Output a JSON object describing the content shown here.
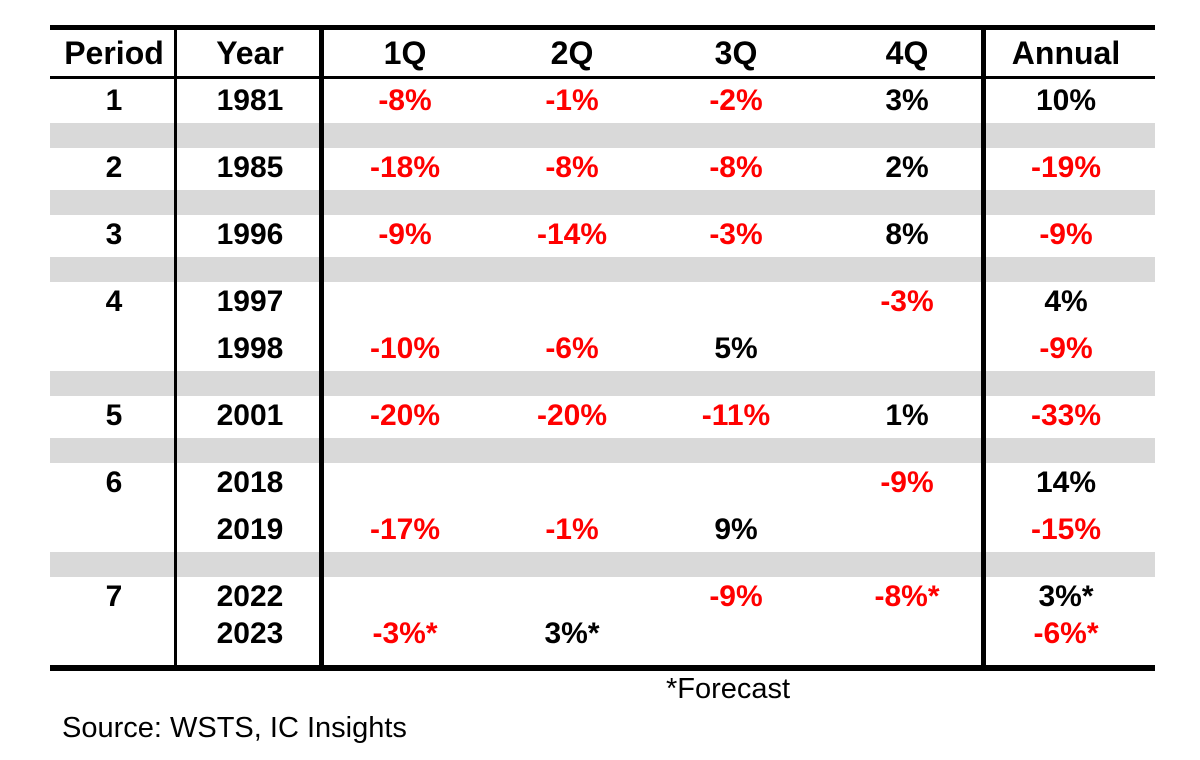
{
  "chart_data": {
    "type": "table",
    "title": "",
    "columns": [
      "Period",
      "Year",
      "1Q",
      "2Q",
      "3Q",
      "4Q",
      "Annual"
    ],
    "groups": [
      {
        "period": "1",
        "rows": [
          {
            "year": "1981",
            "cells": [
              "-8%",
              "-1%",
              "-2%",
              "3%",
              "10%"
            ]
          }
        ]
      },
      {
        "period": "2",
        "rows": [
          {
            "year": "1985",
            "cells": [
              "-18%",
              "-8%",
              "-8%",
              "2%",
              "-19%"
            ]
          }
        ]
      },
      {
        "period": "3",
        "rows": [
          {
            "year": "1996",
            "cells": [
              "-9%",
              "-14%",
              "-3%",
              "8%",
              "-9%"
            ]
          }
        ]
      },
      {
        "period": "4",
        "rows": [
          {
            "year": "1997",
            "cells": [
              "",
              "",
              "",
              "-3%",
              "4%"
            ]
          },
          {
            "year": "1998",
            "cells": [
              "-10%",
              "-6%",
              "5%",
              "",
              "-9%"
            ]
          }
        ]
      },
      {
        "period": "5",
        "rows": [
          {
            "year": "2001",
            "cells": [
              "-20%",
              "-20%",
              "-11%",
              "1%",
              "-33%"
            ]
          }
        ]
      },
      {
        "period": "6",
        "rows": [
          {
            "year": "2018",
            "cells": [
              "",
              "",
              "",
              "-9%",
              "14%"
            ]
          },
          {
            "year": "2019",
            "cells": [
              "-17%",
              "-1%",
              "9%",
              "",
              "-15%"
            ]
          }
        ]
      },
      {
        "period": "7",
        "rows": [
          {
            "year": "2022",
            "cells": [
              "",
              "",
              "-9%",
              "-8%*",
              "3%*"
            ]
          },
          {
            "year": "2023",
            "cells": [
              "-3%*",
              "3%*",
              "",
              "",
              "-6%*"
            ]
          }
        ]
      }
    ],
    "footnote": "*Forecast",
    "source": "Source: WSTS, IC Insights",
    "colors": {
      "negative": "#ff0000",
      "positive": "#000000",
      "band": "#d9d9d9"
    }
  }
}
